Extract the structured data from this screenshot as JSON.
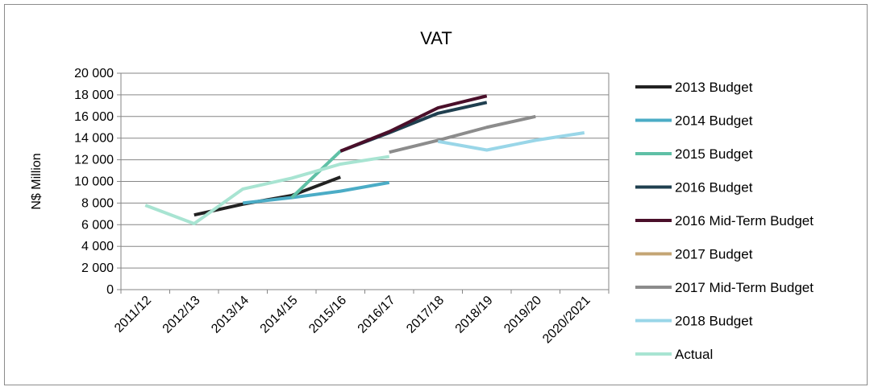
{
  "chart_data": {
    "type": "line",
    "title": "VAT",
    "ylabel": "N$ Million",
    "xlabel": "",
    "ylim": [
      0,
      20000
    ],
    "yticks": [
      0,
      2000,
      4000,
      6000,
      8000,
      10000,
      12000,
      14000,
      16000,
      18000,
      20000
    ],
    "ytick_labels": [
      "0",
      "2 000",
      "4 000",
      "6 000",
      "8 000",
      "10 000",
      "12 000",
      "14 000",
      "16 000",
      "18 000",
      "20 000"
    ],
    "categories": [
      "2011/12",
      "2012/13",
      "2013/14",
      "2014/15",
      "2015/16",
      "2016/17",
      "2017/18",
      "2018/19",
      "2019/20",
      "2020/2021"
    ],
    "grid": true,
    "legend_position": "right",
    "series": [
      {
        "name": "2013 Budget",
        "color": "#222222",
        "values": [
          null,
          6900,
          7900,
          8700,
          10400,
          null,
          null,
          null,
          null,
          null
        ]
      },
      {
        "name": "2014 Budget",
        "color": "#4bacc6",
        "values": [
          null,
          null,
          8000,
          8500,
          9100,
          9900,
          null,
          null,
          null,
          null
        ]
      },
      {
        "name": "2015 Budget",
        "color": "#5fc0a6",
        "values": [
          null,
          null,
          null,
          8500,
          12800,
          null,
          null,
          null,
          null,
          null
        ]
      },
      {
        "name": "2016 Budget",
        "color": "#1f3f4f",
        "values": [
          null,
          null,
          null,
          null,
          12800,
          14500,
          16300,
          17300,
          null,
          null
        ]
      },
      {
        "name": "2016 Mid-Term Budget",
        "color": "#4a0f2a",
        "values": [
          null,
          null,
          null,
          null,
          12800,
          14600,
          16800,
          17900,
          null,
          null
        ]
      },
      {
        "name": "2017 Budget",
        "color": "#c4a574",
        "values": [
          null,
          null,
          null,
          null,
          null,
          null,
          null,
          null,
          null,
          null
        ]
      },
      {
        "name": "2017 Mid-Term Budget",
        "color": "#8c8c8c",
        "values": [
          null,
          null,
          null,
          null,
          null,
          12700,
          13800,
          15000,
          16000,
          null
        ]
      },
      {
        "name": "2018 Budget",
        "color": "#99d6e8",
        "values": [
          null,
          null,
          null,
          null,
          null,
          null,
          13700,
          12900,
          13800,
          14500
        ]
      },
      {
        "name": "Actual",
        "color": "#a8e4d2",
        "values": [
          7800,
          6100,
          9300,
          10300,
          11600,
          12300,
          null,
          null,
          null,
          null
        ]
      }
    ]
  }
}
